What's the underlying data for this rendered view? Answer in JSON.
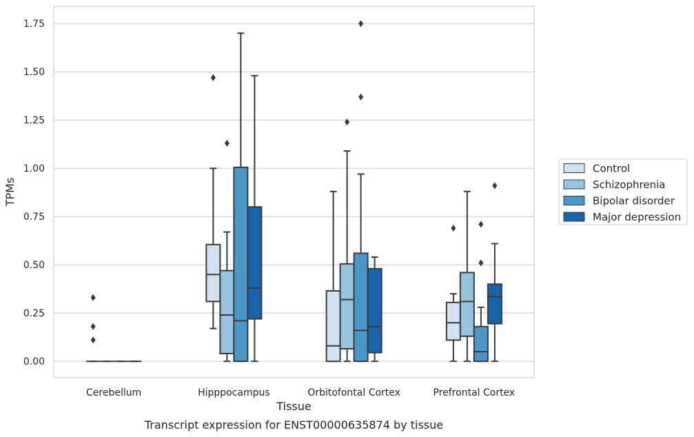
{
  "caption": "Transcript expression for ENST00000635874 by tissue",
  "chart_data": {
    "type": "box",
    "title": "",
    "xlabel": "Tissue",
    "ylabel": "TPMs",
    "ylim": [
      -0.085,
      1.84
    ],
    "yticks": [
      0.0,
      0.25,
      0.5,
      0.75,
      1.0,
      1.25,
      1.5,
      1.75
    ],
    "ytick_labels": [
      "0.00",
      "0.25",
      "0.50",
      "0.75",
      "1.00",
      "1.25",
      "1.50",
      "1.75"
    ],
    "grid": "horizontal",
    "legend_position": "right",
    "categories": [
      "Cerebellum",
      "Hipppocampus",
      "Orbitofontal Cortex",
      "Prefrontal Cortex"
    ],
    "series": [
      {
        "name": "Control",
        "color": "#d0e1f2",
        "boxes": [
          {
            "whislo": 0.0,
            "q1": 0.0,
            "med": 0.0,
            "q3": 0.0,
            "whishi": 0.0,
            "fliers": [
              0.11,
              0.18,
              0.33
            ]
          },
          {
            "whislo": 0.17,
            "q1": 0.31,
            "med": 0.45,
            "q3": 0.605,
            "whishi": 1.0,
            "fliers": [
              1.47
            ]
          },
          {
            "whislo": 0.0,
            "q1": 0.0,
            "med": 0.08,
            "q3": 0.365,
            "whishi": 0.88,
            "fliers": []
          },
          {
            "whislo": 0.0,
            "q1": 0.11,
            "med": 0.2,
            "q3": 0.305,
            "whishi": 0.35,
            "fliers": [
              0.69
            ]
          }
        ]
      },
      {
        "name": "Schizophrenia",
        "color": "#94c4df",
        "boxes": [
          {
            "whislo": 0.0,
            "q1": 0.0,
            "med": 0.0,
            "q3": 0.0,
            "whishi": 0.0,
            "fliers": []
          },
          {
            "whislo": 0.0,
            "q1": 0.04,
            "med": 0.24,
            "q3": 0.47,
            "whishi": 0.67,
            "fliers": [
              1.13
            ]
          },
          {
            "whislo": 0.0,
            "q1": 0.065,
            "med": 0.32,
            "q3": 0.505,
            "whishi": 1.09,
            "fliers": [
              1.24
            ]
          },
          {
            "whislo": 0.0,
            "q1": 0.13,
            "med": 0.31,
            "q3": 0.46,
            "whishi": 0.88,
            "fliers": []
          }
        ]
      },
      {
        "name": "Bipolar disorder",
        "color": "#4a98c9",
        "boxes": [
          {
            "whislo": 0.0,
            "q1": 0.0,
            "med": 0.0,
            "q3": 0.0,
            "whishi": 0.0,
            "fliers": []
          },
          {
            "whislo": 0.0,
            "q1": 0.0,
            "med": 0.21,
            "q3": 1.005,
            "whishi": 1.7,
            "fliers": []
          },
          {
            "whislo": 0.0,
            "q1": 0.0,
            "med": 0.16,
            "q3": 0.56,
            "whishi": 0.97,
            "fliers": [
              1.37,
              1.75
            ]
          },
          {
            "whislo": 0.0,
            "q1": 0.0,
            "med": 0.05,
            "q3": 0.18,
            "whishi": 0.28,
            "fliers": [
              0.51,
              0.71
            ]
          }
        ]
      },
      {
        "name": "Major depression",
        "color": "#1764ab",
        "boxes": [
          {
            "whislo": 0.0,
            "q1": 0.0,
            "med": 0.0,
            "q3": 0.0,
            "whishi": 0.0,
            "fliers": []
          },
          {
            "whislo": 0.0,
            "q1": 0.22,
            "med": 0.38,
            "q3": 0.8,
            "whishi": 1.48,
            "fliers": []
          },
          {
            "whislo": 0.0,
            "q1": 0.045,
            "med": 0.18,
            "q3": 0.48,
            "whishi": 0.54,
            "fliers": []
          },
          {
            "whislo": 0.0,
            "q1": 0.195,
            "med": 0.335,
            "q3": 0.4,
            "whishi": 0.61,
            "fliers": [
              0.91
            ]
          }
        ]
      }
    ]
  }
}
